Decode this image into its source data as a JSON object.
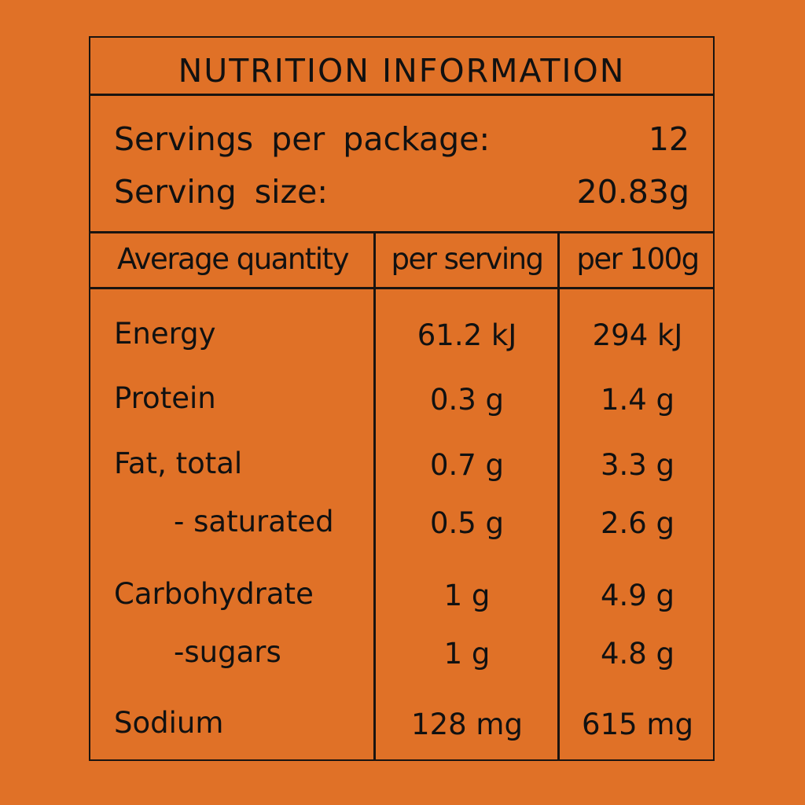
{
  "title": "NUTRITION INFORMATION",
  "servings_per_package": {
    "label": "Servings per package:",
    "value": "12"
  },
  "serving_size": {
    "label": "Serving size:",
    "value": "20.83g"
  },
  "columns": [
    "Average quantity",
    "per serving",
    "per 100g"
  ],
  "rows": [
    {
      "label": "Energy",
      "per_serving": "61.2 kJ",
      "per_100g": "294 kJ",
      "indent": false
    },
    {
      "label": "Protein",
      "per_serving": "0.3 g",
      "per_100g": "1.4 g",
      "indent": false
    },
    {
      "label": "Fat, total",
      "per_serving": "0.7 g",
      "per_100g": "3.3 g",
      "indent": false
    },
    {
      "label": "- saturated",
      "per_serving": "0.5 g",
      "per_100g": "2.6 g",
      "indent": true
    },
    {
      "label": "Carbohydrate",
      "per_serving": "1 g",
      "per_100g": "4.9 g",
      "indent": false
    },
    {
      "label": "-sugars",
      "per_serving": "1 g",
      "per_100g": "4.8 g",
      "indent": true
    },
    {
      "label": "Sodium",
      "per_serving": "128 mg",
      "per_100g": "615 mg",
      "indent": false
    }
  ],
  "colors": {
    "background": "#E07127",
    "ink": "#111111"
  }
}
